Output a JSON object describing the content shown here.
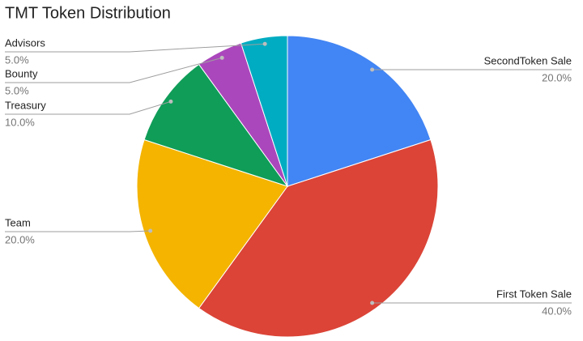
{
  "chart_data": {
    "type": "pie",
    "title": "TMT Token Distribution",
    "categories": [
      "SecondToken Sale",
      "First Token Sale",
      "Team",
      "Treasury",
      "Bounty",
      "Advisors"
    ],
    "values": [
      20,
      40,
      20,
      10,
      5,
      5
    ],
    "value_labels": [
      "20.0%",
      "40.0%",
      "20.0%",
      "10.0%",
      "5.0%",
      "5.0%"
    ],
    "colors": [
      "#4285f4",
      "#db4437",
      "#f4b400",
      "#0f9d58",
      "#ab47bc",
      "#00acc1"
    ]
  }
}
